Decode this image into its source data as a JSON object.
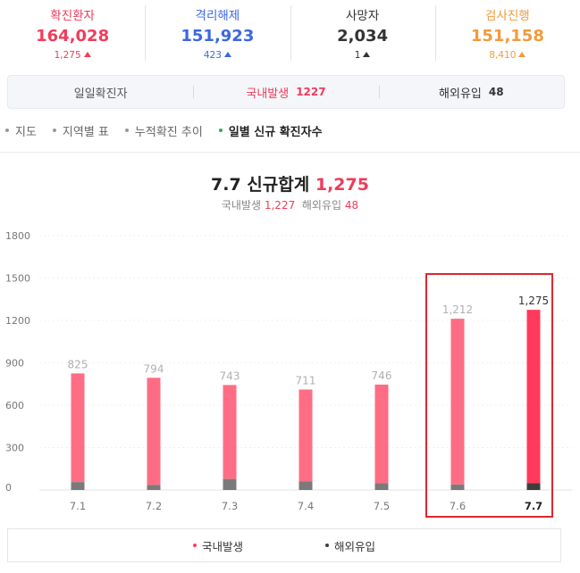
{
  "stats": [
    {
      "label": "확진환자",
      "value": "164,028",
      "delta": "1,275",
      "color": "#f03c5a",
      "up": true
    },
    {
      "label": "격리해제",
      "value": "151,923",
      "delta": "423",
      "color": "#3b67e0",
      "up": true
    },
    {
      "label": "사망자",
      "value": "2,034",
      "delta": "1",
      "color": "#333333",
      "up": true
    },
    {
      "label": "검사진행",
      "value": "151,158",
      "delta": "8,410",
      "color": "#f39a3c",
      "up": true
    }
  ],
  "subbar": {
    "daily_label": "일일확진자",
    "domestic_label": "국내발생",
    "domestic_value": "1227",
    "overseas_label": "해외유입",
    "overseas_value": "48"
  },
  "tabs": [
    {
      "label": "지도",
      "active": false
    },
    {
      "label": "지역별 표",
      "active": false
    },
    {
      "label": "누적확진 추이",
      "active": false
    },
    {
      "label": "일별 신규 확진자수",
      "active": true
    }
  ],
  "chart_header": {
    "title_prefix": "7.7 신규합계",
    "title_value": "1,275",
    "domestic_label": "국내발생",
    "domestic_value": "1,227",
    "overseas_label": "해외유입",
    "overseas_value": "48"
  },
  "colors": {
    "domestic_bar": "#ff6d84",
    "domestic_bar_latest": "#ff3b5c",
    "overseas_bar": "#7a7a7a",
    "overseas_bar_latest": "#3d3d3d",
    "highlight_box": "#e0262d"
  },
  "chart_data": {
    "type": "bar",
    "stacked": true,
    "categories": [
      "7.1",
      "7.2",
      "7.3",
      "7.4",
      "7.5",
      "7.6",
      "7.7"
    ],
    "series": [
      {
        "name": "국내발생",
        "values": [
          769,
          758,
          665,
          650,
          697,
          1173,
          1227
        ]
      },
      {
        "name": "해외유입",
        "values": [
          56,
          36,
          78,
          61,
          49,
          39,
          48
        ]
      }
    ],
    "totals": [
      825,
      794,
      743,
      711,
      746,
      1212,
      1275
    ],
    "total_labels": [
      "825",
      "794",
      "743",
      "711",
      "746",
      "1,212",
      "1,275"
    ],
    "yticks": [
      0,
      300,
      600,
      900,
      1200,
      1500,
      1800
    ],
    "ylim": [
      0,
      1800
    ],
    "grid": true,
    "legend_position": "bottom",
    "highlight_categories": [
      "7.6",
      "7.7"
    ]
  }
}
